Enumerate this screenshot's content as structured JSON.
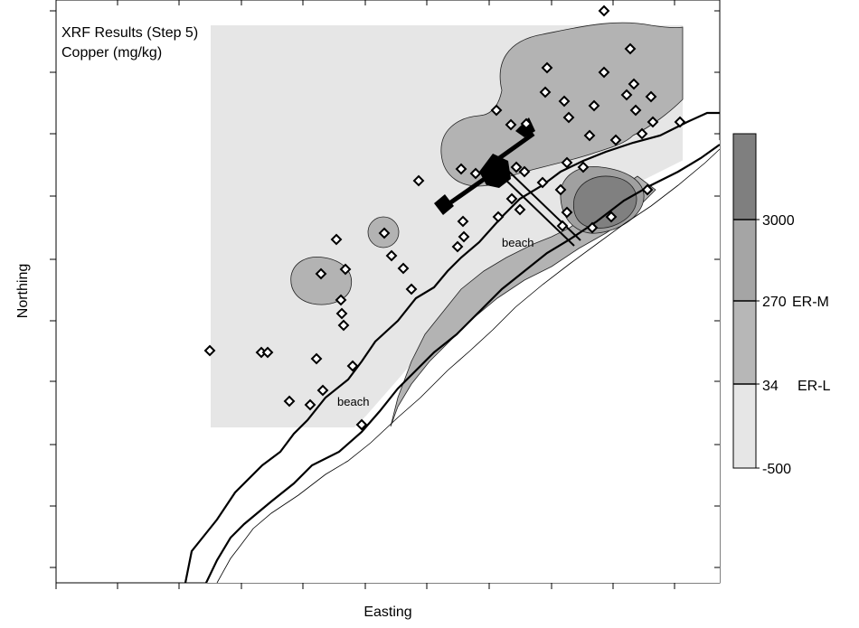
{
  "map": {
    "title_line1": "XRF Results (Step 5)",
    "title_line2": "Copper (mg/kg)",
    "xlabel": "Easting",
    "ylabel": "Northing",
    "beach_label_1": "beach",
    "beach_label_2": "beach"
  },
  "legend": {
    "tick_labels": [
      "3000",
      "270",
      "34",
      "-500"
    ],
    "threshold_labels": [
      "ER-M",
      "ER-L"
    ],
    "class_colors": [
      "#7f7f7f",
      "#a5a5a5",
      "#b7b7b7",
      "#e6e6e6"
    ],
    "outline_color": "#000000"
  },
  "colors": {
    "background_zone": "#e6e6e6",
    "contour_34_270": "#b3b3b3",
    "contour_270_3000": "#a0a0a0",
    "contour_over_3000": "#808080",
    "sample_marker": "#000000"
  }
}
